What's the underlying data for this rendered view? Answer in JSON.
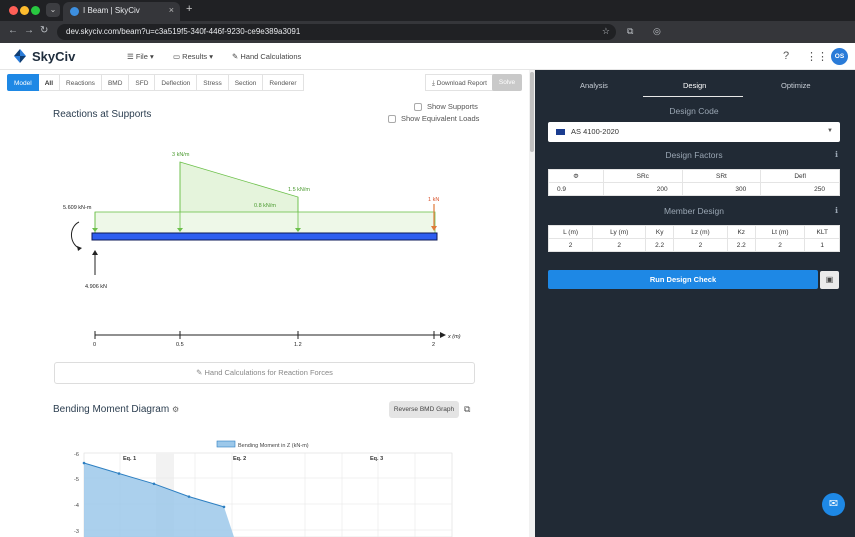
{
  "browser": {
    "tab_title": "I Beam | SkyCiv",
    "url": "dev.skyciv.com/beam?u=c3a519f5-340f-446f-9230-ce9e389a3091"
  },
  "header": {
    "brand": "SkyCiv",
    "menu": {
      "file": "File",
      "results": "Results",
      "hand_calcs": "Hand Calculations"
    },
    "user_initials": "OS"
  },
  "tabs": [
    "Model",
    "All",
    "Reactions",
    "BMD",
    "SFD",
    "Deflection",
    "Stress",
    "Section",
    "Renderer"
  ],
  "download_report": "Download Report",
  "solve": "Solve",
  "reactions": {
    "title": "Reactions at Supports",
    "show_supports": "Show Supports",
    "show_equiv_loads": "Show Equivalent Loads",
    "moment_label": "5.609 kN-m",
    "reaction_label": "4.906 kN",
    "load_labels": {
      "a": "3 kN/m",
      "b": "1.5 kN/m",
      "c": "0.8 kN/m",
      "d": "1 kN"
    },
    "axis_label": "x (m)",
    "axis_ticks": [
      "0",
      "0.5",
      "1.2",
      "2"
    ],
    "hand_calc_button": "Hand Calculations for Reaction Forces"
  },
  "bmd": {
    "title": "Bending Moment Diagram",
    "reverse_button": "Reverse BMD Graph",
    "legend": "Bending Moment in Z (kN-m)",
    "eq_labels": [
      "Eq. 1",
      "Eq. 2",
      "Eq. 3"
    ],
    "y_ticks": [
      "-6",
      "-5",
      "-4",
      "-3"
    ]
  },
  "chart_data": {
    "type": "area",
    "series": [
      {
        "name": "Bending Moment in Z (kN-m)",
        "x": [
          0,
          0.05,
          0.1,
          0.15,
          0.2
        ],
        "values": [
          -5.609,
          -5.2,
          -4.8,
          -4.3,
          -3.9
        ]
      }
    ],
    "ylim": [
      -6,
      -3
    ],
    "xlabel": "",
    "ylabel": ""
  },
  "right": {
    "tabs": [
      "Analysis",
      "Design",
      "Optimize"
    ],
    "design_code_title": "Design Code",
    "design_code": "AS 4100-2020",
    "design_factors_title": "Design Factors",
    "design_factors": {
      "headers": [
        "Φ",
        "SRc",
        "SRt",
        "Defl"
      ],
      "values": [
        "0.9",
        "200",
        "300",
        "250"
      ]
    },
    "member_design_title": "Member Design",
    "member_design": {
      "headers": [
        "L (m)",
        "Ly (m)",
        "Ky",
        "Lz (m)",
        "Kz",
        "Lt (m)",
        "KLT"
      ],
      "values": [
        "2",
        "2",
        "2.2",
        "2",
        "2.2",
        "2",
        "1"
      ]
    },
    "run_button": "Run Design Check"
  },
  "colors": {
    "accent": "#1e88e5",
    "panel": "#212a35",
    "load_green": "#6cc04a",
    "beam_blue": "#2d5ef0"
  }
}
